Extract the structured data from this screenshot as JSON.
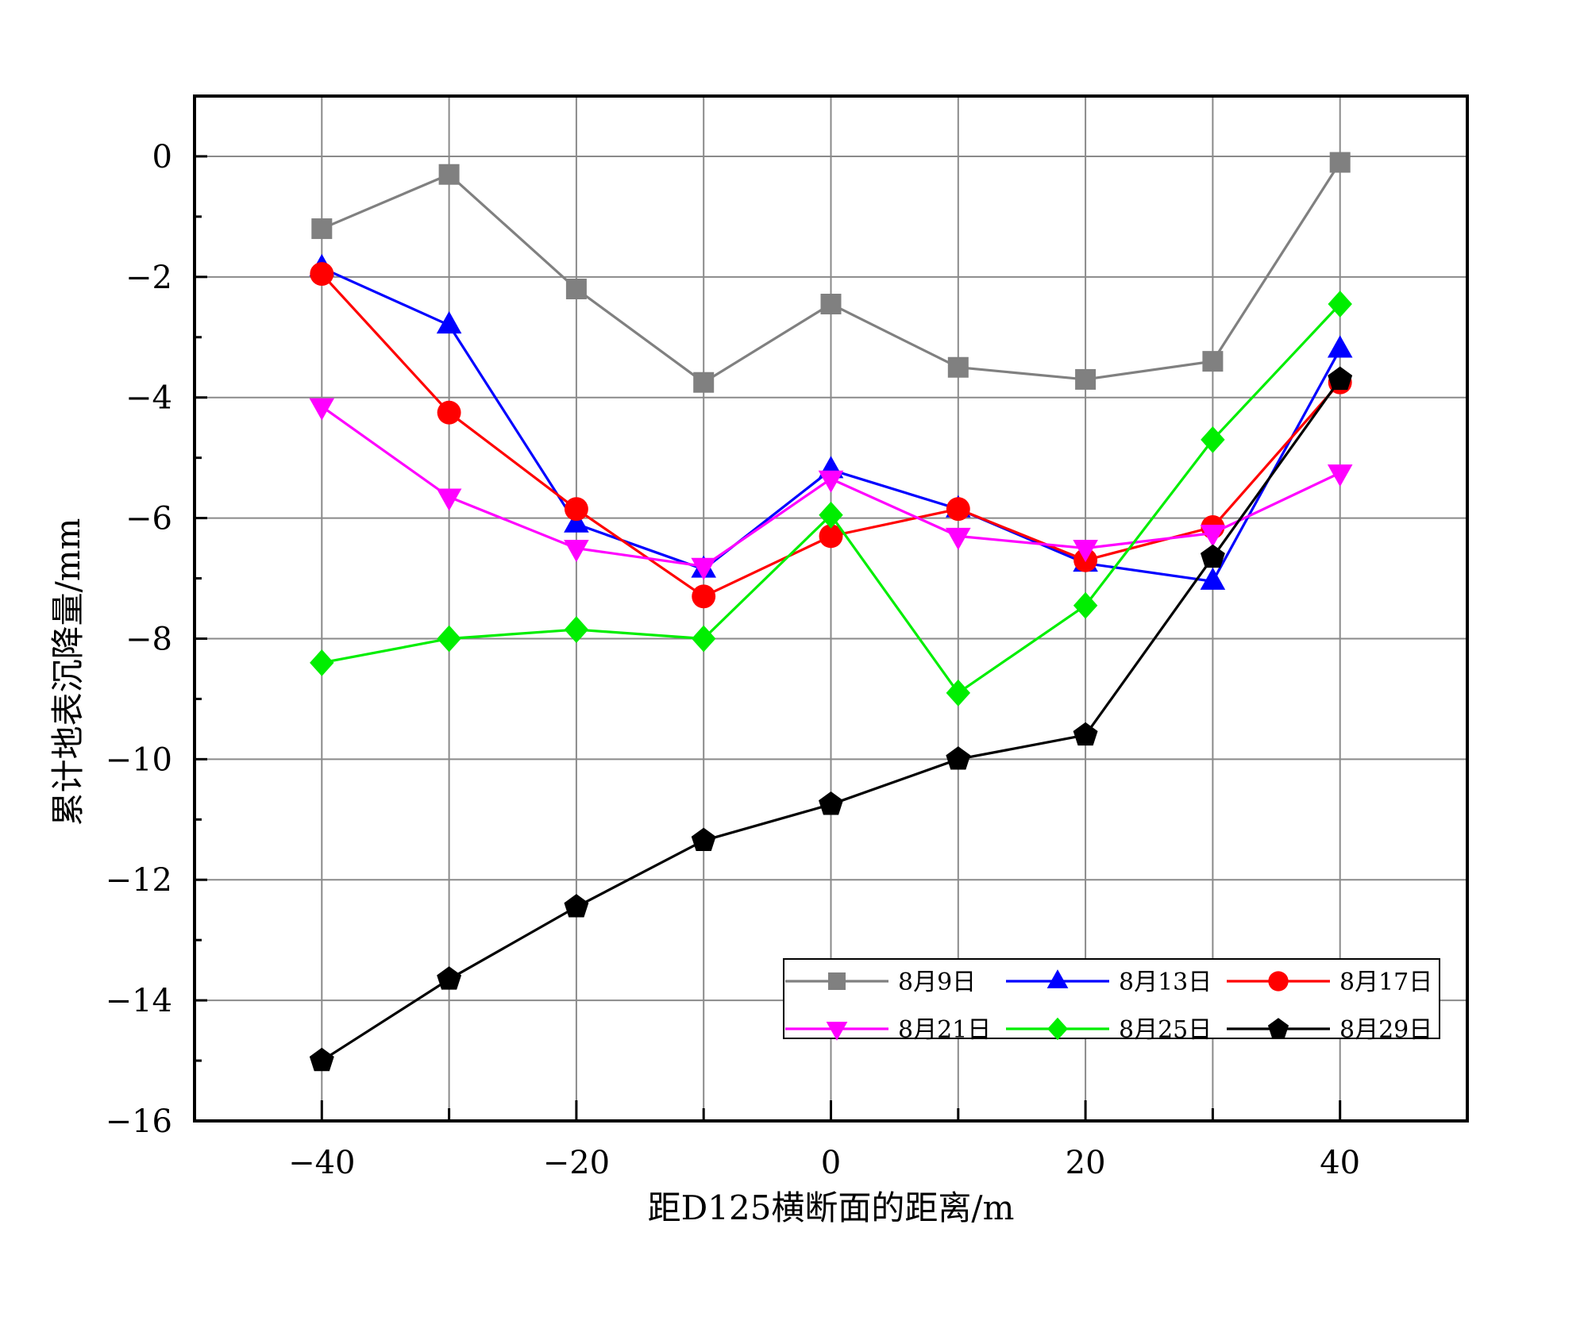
{
  "chart_data": {
    "type": "line",
    "title": "",
    "xlabel": "距D125横断面的距离/m",
    "ylabel": "累计地表沉降量/mm",
    "xlim": [
      -50,
      50
    ],
    "ylim": [
      -16,
      1
    ],
    "xticks": [
      -40,
      -20,
      0,
      20,
      40
    ],
    "yticks": [
      0,
      -2,
      -4,
      -6,
      -8,
      -10,
      -12,
      -14,
      -16
    ],
    "grid": true,
    "legend_position": "bottom-right",
    "x": [
      -40,
      -30,
      -20,
      -10,
      0,
      10,
      20,
      30,
      40
    ],
    "series": [
      {
        "name": "8月9日",
        "color": "#808080",
        "marker": "square",
        "values": [
          -1.2,
          -0.3,
          -2.2,
          -3.75,
          -2.45,
          -3.5,
          -3.7,
          -3.4,
          -0.1
        ]
      },
      {
        "name": "8月13日",
        "color": "#0000ff",
        "marker": "triangle-up",
        "values": [
          -1.85,
          -2.8,
          -6.1,
          -6.85,
          -5.2,
          -5.85,
          -6.75,
          -7.05,
          -3.2
        ]
      },
      {
        "name": "8月17日",
        "color": "#ff0000",
        "marker": "circle",
        "values": [
          -1.95,
          -4.25,
          -5.85,
          -7.3,
          -6.3,
          -5.85,
          -6.7,
          -6.15,
          -3.75
        ]
      },
      {
        "name": "8月21日",
        "color": "#ff00ff",
        "marker": "triangle-down",
        "values": [
          -4.15,
          -5.65,
          -6.5,
          -6.8,
          -5.35,
          -6.3,
          -6.5,
          -6.25,
          -5.25
        ]
      },
      {
        "name": "8月25日",
        "color": "#00ee00",
        "marker": "diamond",
        "values": [
          -8.4,
          -8.0,
          -7.85,
          -8.0,
          -5.95,
          -8.9,
          -7.45,
          -4.7,
          -2.45
        ]
      },
      {
        "name": "8月29日",
        "color": "#000000",
        "marker": "pentagon",
        "values": [
          -15.0,
          -13.65,
          -12.45,
          -11.35,
          -10.75,
          -10.0,
          -9.6,
          -6.65,
          -3.7
        ]
      }
    ]
  }
}
